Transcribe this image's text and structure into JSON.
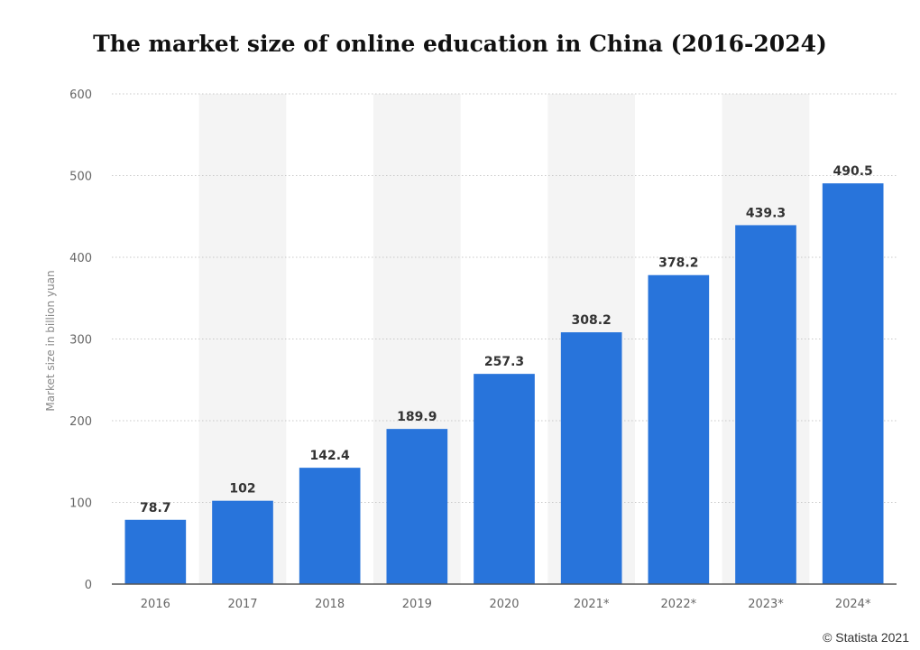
{
  "chart_data": {
    "type": "bar",
    "title": "The market size of online education in China (2016-2024)",
    "ylabel": "Market size in billion yuan",
    "xlabel": "",
    "categories": [
      "2016",
      "2017",
      "2018",
      "2019",
      "2020",
      "2021*",
      "2022*",
      "2023*",
      "2024*"
    ],
    "values": [
      78.7,
      102,
      142.4,
      189.9,
      257.3,
      308.2,
      378.2,
      439.3,
      490.5
    ],
    "value_labels": [
      "78.7",
      "102",
      "142.4",
      "189.9",
      "257.3",
      "308.2",
      "378.2",
      "439.3",
      "490.5"
    ],
    "ylim": [
      0,
      600
    ],
    "yticks": [
      0,
      100,
      200,
      300,
      400,
      500,
      600
    ],
    "grid": true,
    "bar_color": "#2874db",
    "band_color": "#f4f4f4"
  },
  "footer": {
    "credit": "© Statista 2021"
  }
}
